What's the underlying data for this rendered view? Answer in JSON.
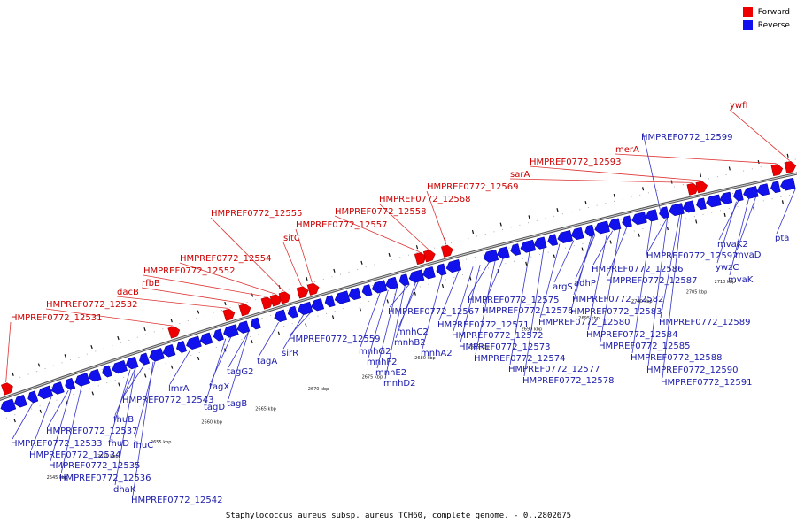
{
  "legend": {
    "forward": {
      "label": "Forward",
      "color": "#ee0000"
    },
    "reverse": {
      "label": "Reverse",
      "color": "#1111ee"
    }
  },
  "caption": "Staphylococcus aureus subsp. aureus TCH60, complete genome. - 0..2802675",
  "scale": {
    "unit": "kbp",
    "labels": [
      "2645 kbp",
      "2650 kbp",
      "2655 kbp",
      "2660 kbp",
      "2665 kbp",
      "2670 kbp",
      "2675 kbp",
      "2680 kbp",
      "2685 kbp",
      "2690 kbp",
      "2695 kbp",
      "2700 kbp",
      "2705 kbp",
      "2710 kbp"
    ]
  },
  "forward_genes": [
    "HMPREF0772_12531",
    "HMPREF0772_12532",
    "dacB",
    "rfbB",
    "HMPREF0772_12552",
    "HMPREF0772_12554",
    "HMPREF0772_12555",
    "sitC",
    "HMPREF0772_12557",
    "HMPREF0772_12558",
    "HMPREF0772_12568",
    "HMPREF0772_12569",
    "sarA",
    "HMPREF0772_12593",
    "merA",
    "ywfI"
  ],
  "reverse_genes": [
    "HMPREF0772_12533",
    "HMPREF0772_12534",
    "HMPREF0772_12535",
    "HMPREF0772_12536",
    "dhaK",
    "HMPREF0772_12537",
    "fhuD",
    "fhuB",
    "fhuC",
    "HMPREF0772_12542",
    "HMPREF0772_12543",
    "lmrA",
    "tagX",
    "tagD",
    "tagB",
    "tagG2",
    "tagA",
    "sirR",
    "HMPREF0772_12559",
    "mnhG2",
    "mnhF2",
    "mnhE2",
    "mnhD2",
    "mnhC2",
    "mnhB2",
    "mnhA2",
    "HMPREF0772_12567",
    "HMPREF0772_12571",
    "HMPREF0772_12572",
    "HMPREF0772_12573",
    "HMPREF0772_12574",
    "HMPREF0772_12575",
    "HMPREF0772_12576",
    "HMPREF0772_12577",
    "HMPREF0772_12578",
    "argS",
    "adhP",
    "HMPREF0772_12580",
    "HMPREF0772_12582",
    "HMPREF0772_12583",
    "HMPREF0772_12584",
    "HMPREF0772_12585",
    "HMPREF0772_12586",
    "HMPREF0772_12587",
    "HMPREF0772_12588",
    "HMPREF0772_12589",
    "HMPREF0772_12590",
    "HMPREF0772_12591",
    "HMPREF0772_12592",
    "HMPREF0772_12599",
    "ywzC",
    "mvaK2",
    "mvaD",
    "mvaK",
    "pta"
  ]
}
